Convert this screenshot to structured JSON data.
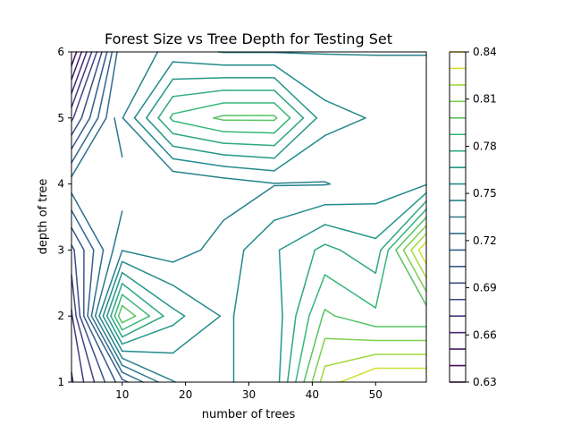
{
  "chart_data": {
    "type": "contour",
    "title": "Forest Size vs Tree Depth for Testing Set",
    "xlabel": "number of trees",
    "ylabel": "depth of tree",
    "xlim": [
      2,
      58
    ],
    "ylim": [
      1,
      6
    ],
    "xticks": [
      10,
      20,
      30,
      40,
      50
    ],
    "yticks": [
      1,
      2,
      3,
      4,
      5,
      6
    ],
    "colorbar": {
      "ticks": [
        0.63,
        0.66,
        0.69,
        0.72,
        0.75,
        0.78,
        0.81,
        0.84
      ],
      "tick_labels": [
        "0.63",
        "0.66",
        "0.69",
        "0.72",
        "0.75",
        "0.78",
        "0.81",
        "0.84"
      ],
      "levels": [
        0.63,
        0.6405,
        0.651,
        0.6615,
        0.672,
        0.6825,
        0.693,
        0.7035,
        0.714,
        0.7245,
        0.735,
        0.7455,
        0.756,
        0.7665,
        0.777,
        0.7875,
        0.798,
        0.8085,
        0.819,
        0.8295,
        0.84
      ],
      "colormap": "viridis"
    },
    "x_samples": [
      2,
      10,
      18,
      26,
      34,
      42,
      50,
      58
    ],
    "y_samples": [
      1,
      2,
      3,
      4,
      5,
      6
    ],
    "z_estimated": [
      [
        0.66,
        0.71,
        0.745,
        0.755,
        0.76,
        0.825,
        0.84,
        0.84
      ],
      [
        0.67,
        0.808,
        0.77,
        0.755,
        0.76,
        0.8,
        0.79,
        0.79
      ],
      [
        0.69,
        0.745,
        0.74,
        0.75,
        0.765,
        0.78,
        0.77,
        0.84
      ],
      [
        0.73,
        0.728,
        0.735,
        0.74,
        0.745,
        0.745,
        0.75,
        0.755
      ],
      [
        0.68,
        0.745,
        0.79,
        0.8,
        0.8,
        0.76,
        0.755,
        0.755
      ],
      [
        0.63,
        0.735,
        0.75,
        0.745,
        0.745,
        0.745,
        0.745,
        0.745
      ]
    ]
  }
}
